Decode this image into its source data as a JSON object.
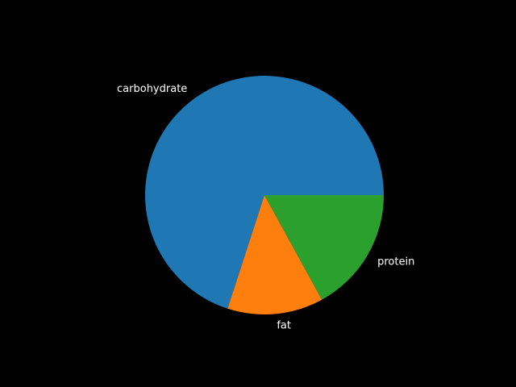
{
  "chart_data": {
    "type": "pie",
    "labels": [
      "carbohydrate",
      "fat",
      "protein"
    ],
    "values": [
      70,
      13,
      17
    ],
    "colors": [
      "#1f77b4",
      "#ff7f0e",
      "#2ca02c"
    ],
    "start_angle_deg": 0,
    "direction": "counterclockwise",
    "background": "#000000",
    "label_color": "#ffffff"
  }
}
